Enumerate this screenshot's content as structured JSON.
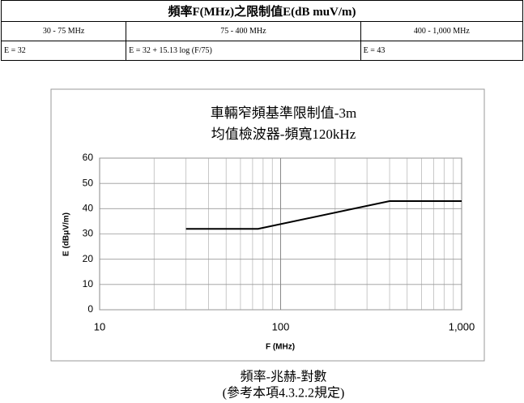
{
  "table": {
    "title": "頻率F(MHz)之限制值E(dB muV/m)",
    "rows": [
      [
        "30 - 75 MHz",
        "75 - 400 MHz",
        "400 - 1,000 MHz"
      ],
      [
        "E = 32",
        "E = 32 + 15.13 log (F/75)",
        "E = 43"
      ]
    ]
  },
  "chart_data": {
    "type": "line",
    "title": [
      "車輛窄頻基準限制值-3m",
      "均值檢波器-頻寬120kHz"
    ],
    "x_label": "F (MHz)",
    "y_label": "E (dBμV/m)",
    "x": [
      30,
      75,
      400,
      1000
    ],
    "values": [
      32,
      32,
      43,
      43
    ],
    "color": "#000000",
    "xscale": "log",
    "xlim": [
      10,
      1000
    ],
    "xticks": [
      10,
      100,
      {
        "value": 1000,
        "label": "1,000"
      }
    ],
    "xminorticks": [
      20,
      30,
      40,
      50,
      60,
      70,
      80,
      90,
      200,
      300,
      400,
      500,
      600,
      700,
      800,
      900
    ],
    "ylim": [
      0,
      60
    ],
    "yticks": [
      0,
      10,
      20,
      30,
      40,
      50,
      60
    ],
    "grid": true
  },
  "caption": [
    "頻率-兆赫-對數",
    "(參考本項4.3.2.2規定)"
  ]
}
